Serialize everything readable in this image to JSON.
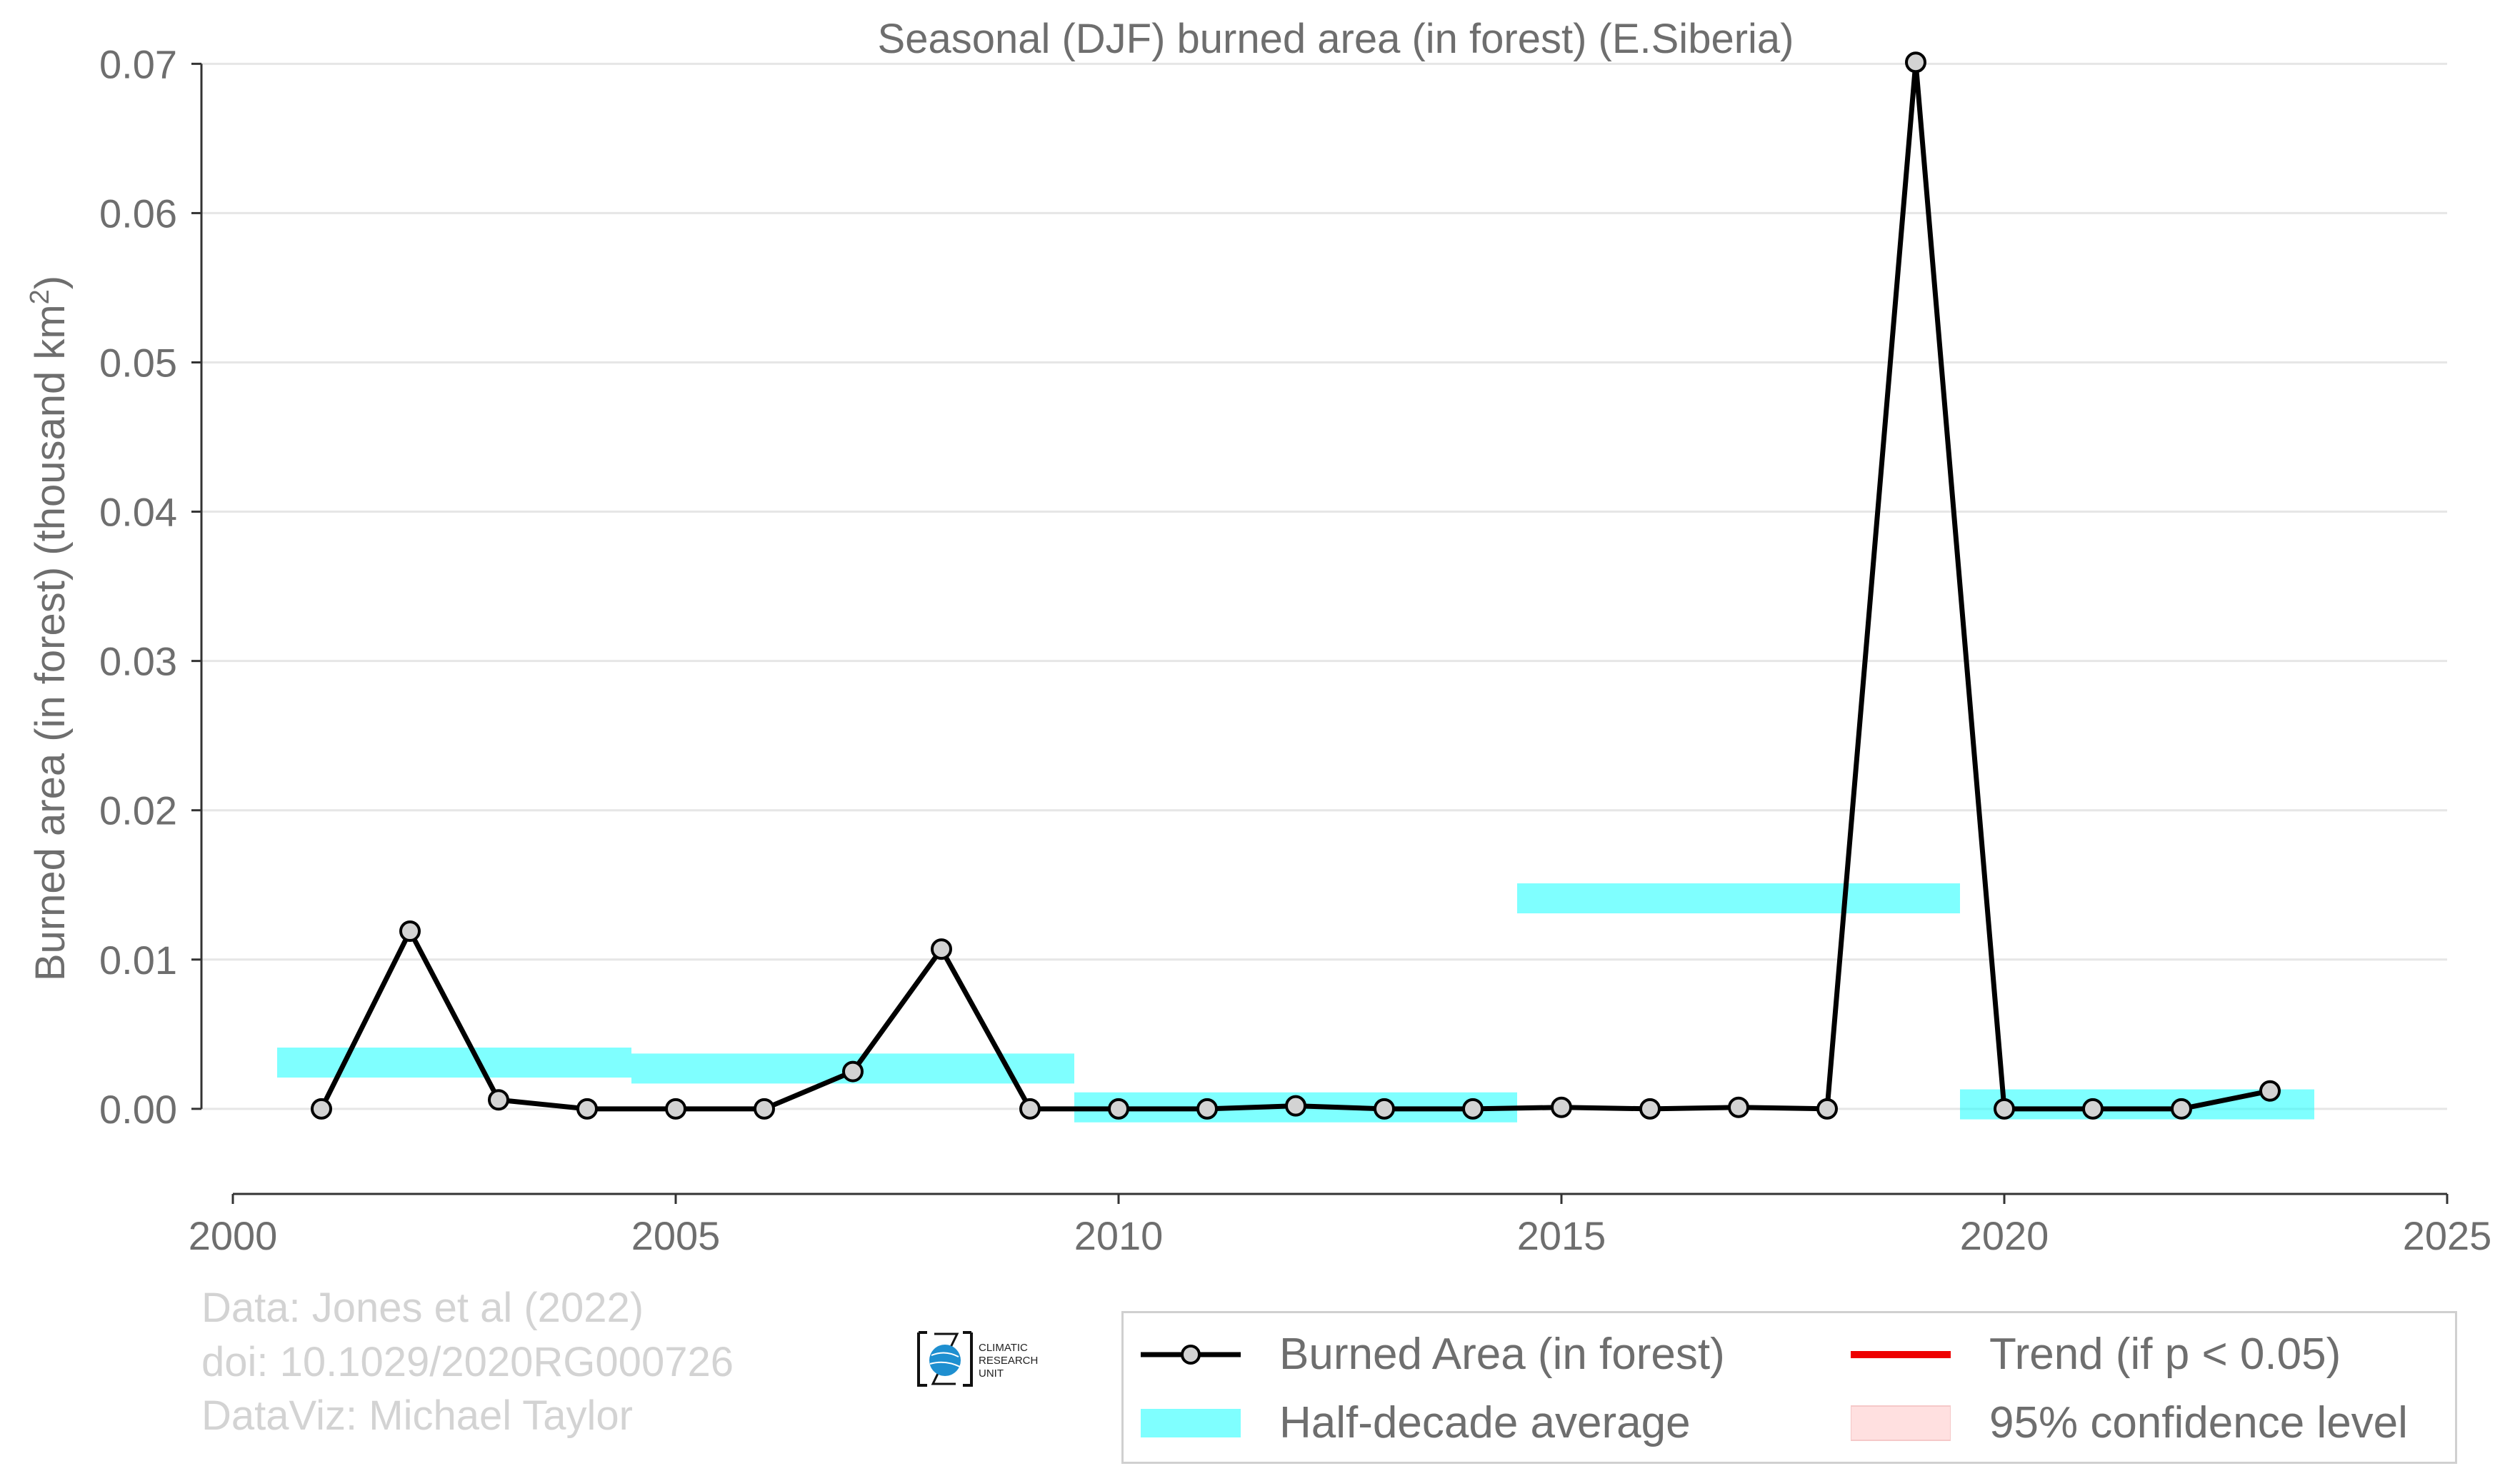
{
  "chart_data": {
    "type": "line",
    "title": "Seasonal (DJF) burned area (in forest) (E.Siberia)",
    "ylabel_main": "Burned area (in forest) (thousand km",
    "ylabel_sup": "2",
    "ylabel_close": ")",
    "xlim": [
      2000,
      2025
    ],
    "ylim": [
      -0.0057,
      0.0715
    ],
    "x_ticks": [
      2000,
      2005,
      2010,
      2015,
      2020,
      2025
    ],
    "y_ticks": [
      0.0,
      0.01,
      0.02,
      0.03,
      0.04,
      0.05,
      0.06,
      0.07
    ],
    "y_tick_labels": [
      "0.00",
      "0.01",
      "0.02",
      "0.03",
      "0.04",
      "0.05",
      "0.06",
      "0.07"
    ],
    "grid": true,
    "legend_position": "bottom-right",
    "series": [
      {
        "name": "Burned Area (in forest)",
        "color": "#000000",
        "marker_fill": "#d3d3d3",
        "x": [
          2001,
          2002,
          2003,
          2004,
          2005,
          2006,
          2007,
          2008,
          2009,
          2010,
          2011,
          2012,
          2013,
          2014,
          2015,
          2016,
          2017,
          2018,
          2019,
          2020,
          2021,
          2022,
          2023
        ],
        "y": [
          0.0,
          0.0119,
          0.0006,
          0.0,
          0.0,
          0.0,
          0.0025,
          0.0107,
          0.0,
          0.0,
          0.0,
          0.0002,
          0.0,
          0.0,
          0.0001,
          0.0,
          0.0001,
          0.0,
          0.0701,
          0.0,
          0.0,
          0.0,
          0.0012
        ]
      }
    ],
    "half_decade_average": {
      "name": "Half-decade average",
      "color": "#00ffff",
      "segments": [
        {
          "x_start": 2000.5,
          "x_end": 2004.5,
          "y": 0.0031
        },
        {
          "x_start": 2004.5,
          "x_end": 2009.5,
          "y": 0.0027
        },
        {
          "x_start": 2009.5,
          "x_end": 2014.5,
          "y": 0.0001
        },
        {
          "x_start": 2014.5,
          "x_end": 2019.5,
          "y": 0.0141
        },
        {
          "x_start": 2019.5,
          "x_end": 2023.5,
          "y": 0.0003
        }
      ]
    },
    "legend": {
      "burned_area": "Burned Area (in forest)",
      "trend": "Trend (if p < 0.05)",
      "half_decade": "Half-decade average",
      "confidence": "95% confidence level"
    },
    "colors": {
      "trend": "#ee0000",
      "confidence": "#ffe0e0",
      "half_decade": "#00ffff",
      "line": "#000000",
      "grid": "#e6e6e6",
      "text": "#6e6e6e",
      "credit": "#d3d3d3"
    }
  },
  "credits": {
    "line1": "Data: Jones et al (2022)",
    "line2": "doi: 10.1029/2020RG000726",
    "line3": "DataViz: Michael Taylor"
  },
  "logo": {
    "text1": "CLIMATIC",
    "text2": "RESEARCH",
    "text3": "UNIT"
  }
}
